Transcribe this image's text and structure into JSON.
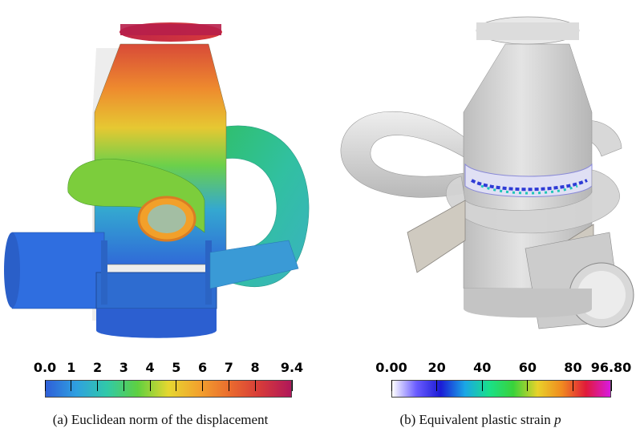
{
  "panel_a": {
    "colorbar": {
      "ticks": [
        "0.0",
        "1",
        "2",
        "3",
        "4",
        "5",
        "6",
        "7",
        "8",
        "9.4"
      ],
      "min": 0.0,
      "max": 9.4,
      "colors": [
        "#2f5fd8",
        "#2fa0e0",
        "#31c9a8",
        "#5fd040",
        "#e6d730",
        "#f2a22e",
        "#ea6b2e",
        "#d63a3a",
        "#b0175a"
      ]
    },
    "caption": "(a) Euclidean norm of the displacement"
  },
  "panel_b": {
    "colorbar": {
      "ticks": [
        "0.00",
        "20",
        "40",
        "60",
        "80",
        "96.80"
      ],
      "min": 0.0,
      "max": 96.8,
      "colors": [
        "#ffffff",
        "#6a5cff",
        "#1b1bd6",
        "#1aa6e6",
        "#19e08a",
        "#3ad23a",
        "#e8d22a",
        "#f08a20",
        "#e01a3a",
        "#d81ae0"
      ]
    },
    "caption_prefix": "(b) Equivalent plastic strain ",
    "caption_symbol": "p"
  }
}
